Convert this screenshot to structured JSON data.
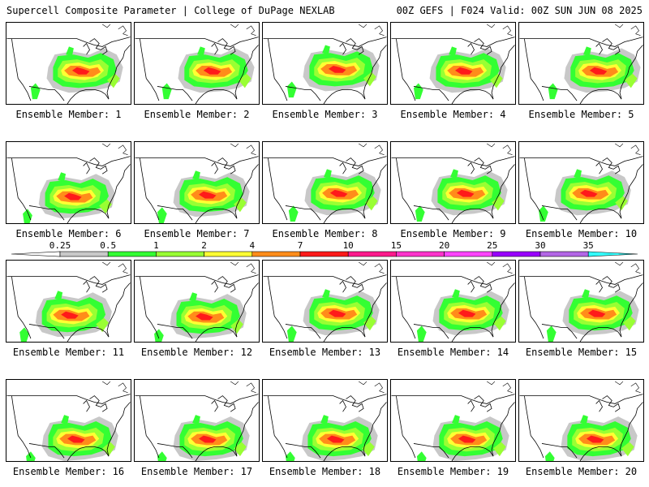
{
  "header": {
    "title": "Supercell Composite Parameter | College of DuPage NEXLAB",
    "run_info": "00Z GEFS | F024 Valid: 00Z SUN JUN 08 2025"
  },
  "panels": [
    {
      "label": "Ensemble Member: 1"
    },
    {
      "label": "Ensemble Member: 2"
    },
    {
      "label": "Ensemble Member: 3"
    },
    {
      "label": "Ensemble Member: 4"
    },
    {
      "label": "Ensemble Member: 5"
    },
    {
      "label": "Ensemble Member: 6"
    },
    {
      "label": "Ensemble Member: 7"
    },
    {
      "label": "Ensemble Member: 8"
    },
    {
      "label": "Ensemble Member: 9"
    },
    {
      "label": "Ensemble Member: 10"
    },
    {
      "label": "Ensemble Member: 11"
    },
    {
      "label": "Ensemble Member: 12"
    },
    {
      "label": "Ensemble Member: 13"
    },
    {
      "label": "Ensemble Member: 14"
    },
    {
      "label": "Ensemble Member: 15"
    },
    {
      "label": "Ensemble Member: 16"
    },
    {
      "label": "Ensemble Member: 17"
    },
    {
      "label": "Ensemble Member: 18"
    },
    {
      "label": "Ensemble Member: 19"
    },
    {
      "label": "Ensemble Member: 20"
    }
  ],
  "colorbar": {
    "thresholds": [
      "0.25",
      "0.5",
      "1",
      "2",
      "4",
      "7",
      "10",
      "15",
      "20",
      "25",
      "30",
      "35"
    ],
    "colors": [
      "#ffffff",
      "#c8c8c8",
      "#33ff33",
      "#99ff33",
      "#ffff33",
      "#ff8c1a",
      "#ff1a1a",
      "#ff1a8c",
      "#ff33cc",
      "#ff44ff",
      "#9900ff",
      "#b366e6",
      "#33ffff"
    ]
  },
  "shading_colors": {
    "gray": "#c8c8c8",
    "green": "#33ff33",
    "lightgreen": "#99ff33",
    "yellow": "#ffff33",
    "orange": "#ff8c1a",
    "red": "#ff1a1a",
    "magenta": "#ff1a8c"
  }
}
